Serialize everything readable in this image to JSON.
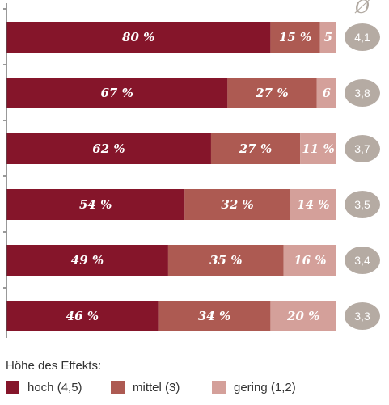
{
  "chart_data": {
    "type": "bar",
    "stacked": true,
    "orientation": "horizontal",
    "xlim": [
      0,
      100
    ],
    "categories": [
      "",
      "",
      "",
      "",
      "",
      ""
    ],
    "series": [
      {
        "name": "hoch (4,5)",
        "color": "#85152a",
        "values": [
          80,
          67,
          62,
          54,
          49,
          46
        ]
      },
      {
        "name": "mittel (3)",
        "color": "#ad5a52",
        "values": [
          15,
          27,
          27,
          32,
          35,
          34
        ]
      },
      {
        "name": "gering (1,2)",
        "color": "#d4a09a",
        "values": [
          5,
          6,
          11,
          14,
          16,
          20
        ]
      }
    ],
    "data_labels": [
      [
        "80 %",
        "15 %",
        "5"
      ],
      [
        "67 %",
        "27 %",
        "6"
      ],
      [
        "62 %",
        "27 %",
        "11 %"
      ],
      [
        "54 %",
        "32 %",
        "14 %"
      ],
      [
        "49 %",
        "35 %",
        "16 %"
      ],
      [
        "46 %",
        "34 %",
        "20 %"
      ]
    ],
    "averages": [
      "4,1",
      "3,8",
      "3,7",
      "3,5",
      "3,4",
      "3,3"
    ],
    "average_header": "Ø",
    "avg_badge_color": "#b5aba3",
    "legend_title": "Höhe des Effekts:",
    "legend_placement": "bottom-left"
  }
}
